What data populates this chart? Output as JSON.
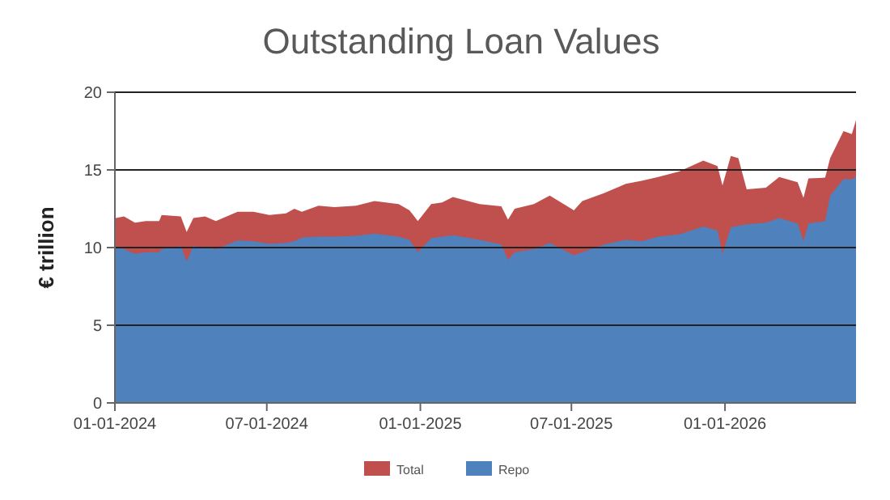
{
  "chart_data": {
    "type": "area",
    "title": "Outstanding Loan Values",
    "ylabel": "€ trillion",
    "x": [
      "2024-01-02",
      "2024-01-12",
      "2024-01-25",
      "2024-02-07",
      "2024-02-23",
      "2024-02-26",
      "2024-03-20",
      "2024-03-27",
      "2024-04-04",
      "2024-04-18",
      "2024-05-01",
      "2024-05-27",
      "2024-06-15",
      "2024-07-04",
      "2024-07-24",
      "2024-08-03",
      "2024-08-12",
      "2024-09-01",
      "2024-09-20",
      "2024-10-16",
      "2024-11-07",
      "2024-12-06",
      "2024-12-19",
      "2024-12-29",
      "2025-01-14",
      "2025-01-27",
      "2025-02-09",
      "2025-03-13",
      "2025-04-08",
      "2025-04-16",
      "2025-04-24",
      "2025-05-17",
      "2025-06-05",
      "2025-07-04",
      "2025-07-14",
      "2025-08-09",
      "2025-09-04",
      "2025-09-23",
      "2025-10-13",
      "2025-11-07",
      "2025-12-06",
      "2025-12-23",
      "2025-12-29",
      "2026-01-08",
      "2026-01-17",
      "2026-01-27",
      "2026-02-19",
      "2026-03-07",
      "2026-03-29",
      "2026-04-05",
      "2026-04-11",
      "2026-05-01",
      "2026-05-07",
      "2026-05-23",
      "2026-06-02",
      "2026-06-07"
    ],
    "series": [
      {
        "name": "Total",
        "color": "#c0504d",
        "values": [
          11.9,
          12.0,
          11.6,
          11.7,
          11.7,
          12.1,
          12.0,
          11.0,
          11.9,
          12.0,
          11.7,
          12.3,
          12.3,
          12.1,
          12.2,
          12.5,
          12.3,
          12.7,
          12.6,
          12.7,
          13.0,
          12.8,
          12.4,
          11.7,
          12.8,
          12.9,
          13.25,
          12.8,
          12.65,
          11.8,
          12.5,
          12.8,
          13.35,
          12.4,
          13.0,
          13.5,
          14.1,
          14.3,
          14.55,
          14.9,
          15.6,
          15.25,
          14.0,
          15.9,
          15.75,
          13.75,
          13.85,
          14.55,
          14.2,
          13.2,
          14.45,
          14.5,
          15.75,
          17.5,
          17.3,
          18.2
        ]
      },
      {
        "name": "Repo",
        "color": "#4f81bd",
        "values": [
          10.0,
          9.9,
          9.6,
          9.7,
          9.7,
          9.9,
          10.1,
          9.1,
          10.1,
          10.0,
          9.9,
          10.45,
          10.4,
          10.25,
          10.3,
          10.4,
          10.65,
          10.7,
          10.7,
          10.75,
          10.9,
          10.7,
          10.5,
          9.7,
          10.6,
          10.7,
          10.8,
          10.5,
          10.2,
          9.2,
          9.7,
          9.9,
          10.3,
          9.5,
          9.7,
          10.2,
          10.5,
          10.4,
          10.7,
          10.85,
          11.35,
          11.1,
          9.6,
          11.3,
          11.4,
          11.5,
          11.6,
          11.9,
          11.55,
          10.4,
          11.55,
          11.7,
          13.35,
          14.4,
          14.4,
          14.55
        ]
      }
    ],
    "xlim": [
      "2024-01-01",
      "2026-06-07"
    ],
    "xticks": [
      {
        "value": "2024-01-01",
        "label": "01-01-2024"
      },
      {
        "value": "2024-07-01",
        "label": "07-01-2024"
      },
      {
        "value": "2025-01-01",
        "label": "01-01-2025"
      },
      {
        "value": "2025-07-01",
        "label": "07-01-2025"
      },
      {
        "value": "2026-01-01",
        "label": "01-01-2026"
      }
    ],
    "ylim": [
      0,
      20
    ],
    "yticks": [
      0,
      5,
      10,
      15,
      20
    ],
    "grid": "y",
    "legend": "bottom"
  }
}
